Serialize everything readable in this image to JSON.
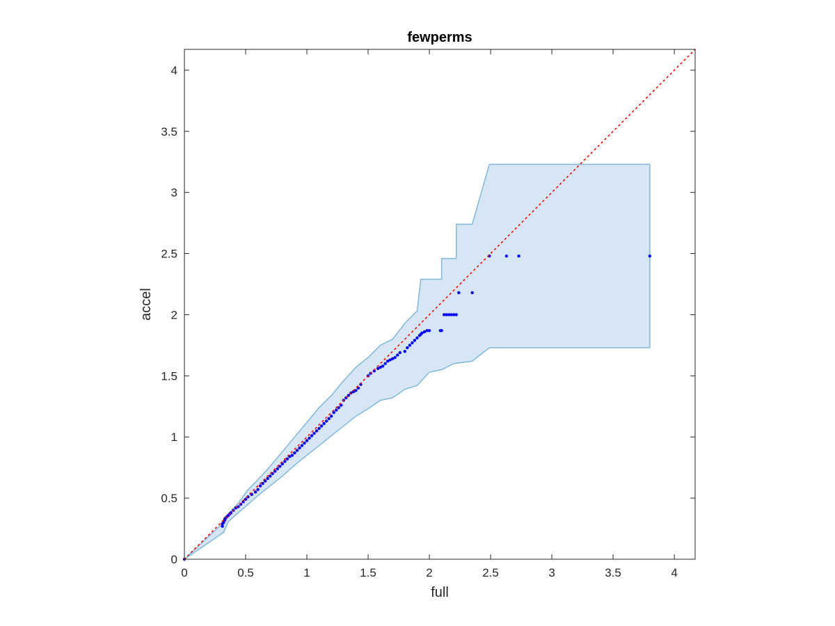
{
  "chart_data": {
    "type": "scatter",
    "title": "fewperms",
    "xlabel": "full",
    "ylabel": "accel",
    "xlim": [
      0,
      4.17
    ],
    "ylim": [
      0,
      4.17
    ],
    "xticks": [
      0,
      0.5,
      1,
      1.5,
      2,
      2.5,
      3,
      3.5,
      4
    ],
    "yticks": [
      0,
      0.5,
      1,
      1.5,
      2,
      2.5,
      3,
      3.5,
      4
    ],
    "xtick_labels": [
      "0",
      "0.5",
      "1",
      "1.5",
      "2",
      "2.5",
      "3",
      "3.5",
      "4"
    ],
    "ytick_labels": [
      "0",
      "0.5",
      "1",
      "1.5",
      "2",
      "2.5",
      "3",
      "3.5",
      "4"
    ],
    "grid": false,
    "colors": {
      "points": "#0000ff",
      "reference_line": "#ff0000",
      "band_fill": "#d6e6f4",
      "band_edge": "#80b8dc",
      "axes": "#262626"
    },
    "reference_line": {
      "style": "dotted",
      "x": [
        0,
        4.17
      ],
      "y": [
        0,
        4.17
      ]
    },
    "band": {
      "upper": [
        [
          0,
          0
        ],
        [
          0.32,
          0.3
        ],
        [
          0.36,
          0.37
        ],
        [
          0.44,
          0.46
        ],
        [
          0.52,
          0.57
        ],
        [
          0.6,
          0.65
        ],
        [
          0.7,
          0.76
        ],
        [
          0.8,
          0.88
        ],
        [
          0.9,
          1.0
        ],
        [
          1.0,
          1.12
        ],
        [
          1.1,
          1.24
        ],
        [
          1.2,
          1.34
        ],
        [
          1.3,
          1.46
        ],
        [
          1.4,
          1.57
        ],
        [
          1.5,
          1.65
        ],
        [
          1.6,
          1.75
        ],
        [
          1.7,
          1.8
        ],
        [
          1.8,
          1.93
        ],
        [
          1.9,
          2.03
        ],
        [
          1.93,
          2.29
        ],
        [
          2.1,
          2.29
        ],
        [
          2.1,
          2.46
        ],
        [
          2.22,
          2.46
        ],
        [
          2.22,
          2.74
        ],
        [
          2.35,
          2.74
        ],
        [
          2.49,
          3.23
        ],
        [
          3.8,
          3.23
        ]
      ],
      "lower": [
        [
          0,
          0
        ],
        [
          0.32,
          0.22
        ],
        [
          0.36,
          0.31
        ],
        [
          0.44,
          0.38
        ],
        [
          0.52,
          0.45
        ],
        [
          0.6,
          0.52
        ],
        [
          0.7,
          0.6
        ],
        [
          0.8,
          0.68
        ],
        [
          0.9,
          0.77
        ],
        [
          1.0,
          0.85
        ],
        [
          1.1,
          0.93
        ],
        [
          1.2,
          1.01
        ],
        [
          1.3,
          1.09
        ],
        [
          1.4,
          1.17
        ],
        [
          1.5,
          1.23
        ],
        [
          1.6,
          1.3
        ],
        [
          1.7,
          1.32
        ],
        [
          1.8,
          1.39
        ],
        [
          1.9,
          1.42
        ],
        [
          2.0,
          1.53
        ],
        [
          2.1,
          1.55
        ],
        [
          2.2,
          1.6
        ],
        [
          2.35,
          1.62
        ],
        [
          2.49,
          1.73
        ],
        [
          3.8,
          1.73
        ]
      ],
      "right_x": 3.8
    },
    "points": {
      "x": [
        0,
        0.31,
        0.31,
        0.32,
        0.32,
        0.33,
        0.33,
        0.34,
        0.35,
        0.36,
        0.37,
        0.38,
        0.4,
        0.42,
        0.44,
        0.46,
        0.48,
        0.5,
        0.52,
        0.55,
        0.58,
        0.6,
        0.62,
        0.64,
        0.66,
        0.68,
        0.7,
        0.72,
        0.74,
        0.76,
        0.78,
        0.8,
        0.82,
        0.84,
        0.86,
        0.88,
        0.9,
        0.92,
        0.94,
        0.96,
        0.98,
        1.0,
        1.02,
        1.04,
        1.06,
        1.08,
        1.1,
        1.12,
        1.14,
        1.16,
        1.18,
        1.2,
        1.22,
        1.24,
        1.26,
        1.28,
        1.3,
        1.32,
        1.34,
        1.36,
        1.38,
        1.4,
        1.42,
        1.44,
        1.5,
        1.52,
        1.55,
        1.58,
        1.6,
        1.62,
        1.64,
        1.66,
        1.68,
        1.7,
        1.72,
        1.74,
        1.76,
        1.8,
        1.82,
        1.84,
        1.86,
        1.88,
        1.9,
        1.92,
        1.93,
        1.94,
        1.96,
        1.98,
        2.0,
        2.09,
        2.1,
        2.12,
        2.14,
        2.16,
        2.18,
        2.2,
        2.22,
        2.24,
        2.35,
        2.49,
        2.63,
        2.73,
        3.8
      ],
      "y": [
        0,
        0.27,
        0.29,
        0.3,
        0.31,
        0.32,
        0.33,
        0.34,
        0.35,
        0.36,
        0.37,
        0.38,
        0.4,
        0.42,
        0.43,
        0.45,
        0.47,
        0.49,
        0.51,
        0.53,
        0.55,
        0.57,
        0.6,
        0.62,
        0.64,
        0.66,
        0.68,
        0.7,
        0.72,
        0.74,
        0.76,
        0.78,
        0.8,
        0.82,
        0.84,
        0.85,
        0.87,
        0.89,
        0.91,
        0.93,
        0.95,
        0.97,
        0.99,
        1.01,
        1.03,
        1.05,
        1.07,
        1.09,
        1.11,
        1.13,
        1.15,
        1.17,
        1.2,
        1.22,
        1.24,
        1.26,
        1.3,
        1.32,
        1.34,
        1.36,
        1.37,
        1.38,
        1.4,
        1.43,
        1.5,
        1.52,
        1.54,
        1.56,
        1.57,
        1.58,
        1.6,
        1.62,
        1.63,
        1.64,
        1.65,
        1.67,
        1.69,
        1.7,
        1.73,
        1.75,
        1.77,
        1.79,
        1.81,
        1.83,
        1.84,
        1.85,
        1.86,
        1.87,
        1.87,
        1.87,
        1.87,
        2.0,
        2.0,
        2.0,
        2.0,
        2.0,
        2.0,
        2.18,
        2.18,
        2.48,
        2.48,
        2.48,
        2.48
      ]
    }
  }
}
